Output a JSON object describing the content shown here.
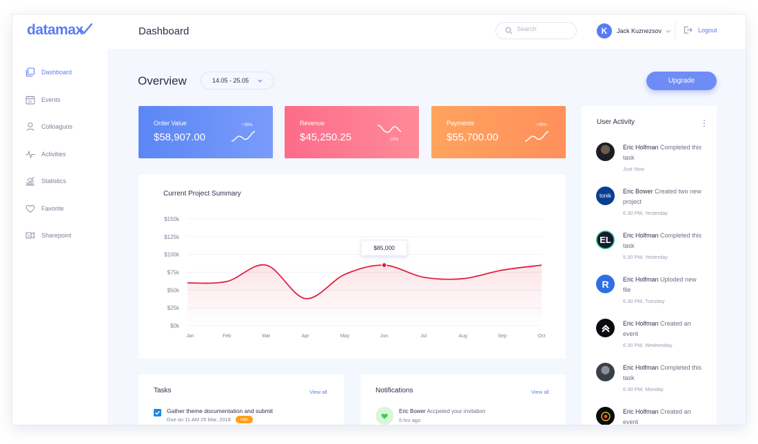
{
  "app": {
    "logo": "datamax"
  },
  "header": {
    "title": "Dashboard",
    "search_placeholder": "Search",
    "user_name": "Jack Kuznezsov",
    "avatar_letter": "K",
    "logout_label": "Logout"
  },
  "sidebar": {
    "items": [
      {
        "label": "Dashboard",
        "icon": "dashboard-icon",
        "active": true
      },
      {
        "label": "Events",
        "icon": "calendar-icon",
        "active": false
      },
      {
        "label": "Colloaguos",
        "icon": "user-icon",
        "active": false
      },
      {
        "label": "Activities",
        "icon": "pulse-icon",
        "active": false
      },
      {
        "label": "Statistics",
        "icon": "chart-icon",
        "active": false
      },
      {
        "label": "Favorite",
        "icon": "heart-icon",
        "active": false
      },
      {
        "label": "Sharepoint",
        "icon": "share-icon",
        "active": false
      }
    ]
  },
  "overview": {
    "title": "Overview",
    "date_range": "14.05 - 25.05",
    "upgrade_label": "Upgrade"
  },
  "stats": [
    {
      "label": "Order Value",
      "value": "$58,907.00",
      "change": "+35%",
      "color": "#5b86f5"
    },
    {
      "label": "Revenue",
      "value": "$45,250.25",
      "change": "-15%",
      "color": "#fd6c8a"
    },
    {
      "label": "Payments",
      "value": "$55,700.00",
      "change": "+35%",
      "color": "#ffa35e"
    }
  ],
  "summary": {
    "title": "Current Project Summary",
    "tooltip": "$85,000"
  },
  "chart_data": {
    "type": "area",
    "categories": [
      "Jan",
      "Feb",
      "Mar",
      "Apr",
      "May",
      "Jun",
      "Jul",
      "Aug",
      "Sep",
      "Oct"
    ],
    "values": [
      60000,
      62000,
      85000,
      38000,
      72000,
      85000,
      68000,
      66000,
      78000,
      85000
    ],
    "yticks": [
      "$0k",
      "$25k",
      "$50k",
      "$75k",
      "$100k",
      "$125k",
      "$150k"
    ],
    "ylim": [
      0,
      150000
    ],
    "color": "#e0203e",
    "highlight_category": "Jun"
  },
  "tasks": {
    "title": "Tasks",
    "view_all": "View all",
    "items": [
      {
        "title": "Gather theme documentation and submit",
        "due": "Due on 11 AM 25 Mar, 2018",
        "priority": "High",
        "done": true
      }
    ]
  },
  "notifications": {
    "title": "Notifications",
    "view_all": "View all",
    "items": [
      {
        "name": "Eric Bower",
        "text": "Accpeted your invitation",
        "time": "5 hrs ago"
      }
    ]
  },
  "activity": {
    "title": "User Activity",
    "items": [
      {
        "name": "Eric Holfman",
        "text": "Completed this task",
        "time": "Just Now",
        "avatar": "photo-avatar"
      },
      {
        "name": "Eric Bower",
        "text": "Created two new  project",
        "time": "6.30 PM, Yesterday",
        "avatar": "tonik-logo",
        "logo_text": "tonik"
      },
      {
        "name": "Eric Holfman",
        "text": "Completed this task",
        "time": "5.30 PM, Yesterday",
        "avatar": "el-logo",
        "logo_text": "EL"
      },
      {
        "name": "Eric Holfman",
        "text": "Uploded new file",
        "time": "6.30 PM, Tuesday",
        "avatar": "r-logo",
        "logo_text": "R"
      },
      {
        "name": "Eric Holfman",
        "text": "Created an event",
        "time": "6.30 PM, Wednesday",
        "avatar": "arrow-logo"
      },
      {
        "name": "Eric Holfman",
        "text": "Completed this task",
        "time": "6.30 PM, Monday",
        "avatar": "photo-avatar"
      },
      {
        "name": "Eric Holfman",
        "text": "Created an event",
        "time": "",
        "avatar": "eye-logo"
      }
    ]
  }
}
